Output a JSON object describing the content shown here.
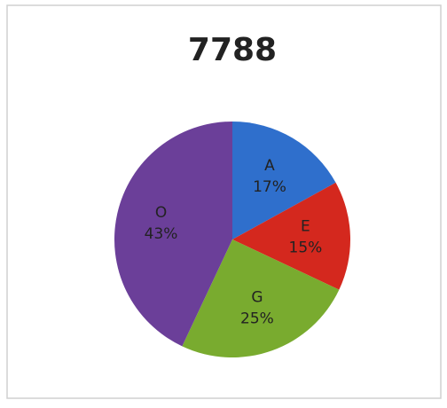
{
  "chart_data": {
    "type": "pie",
    "title": "7788",
    "categories": [
      "A",
      "E",
      "G",
      "O"
    ],
    "values": [
      17,
      15,
      25,
      43
    ],
    "value_labels": [
      "17%",
      "15%",
      "25%",
      "43%"
    ],
    "colors": [
      "#2f6fcc",
      "#d4281e",
      "#79ab2f",
      "#6b3f99"
    ]
  }
}
